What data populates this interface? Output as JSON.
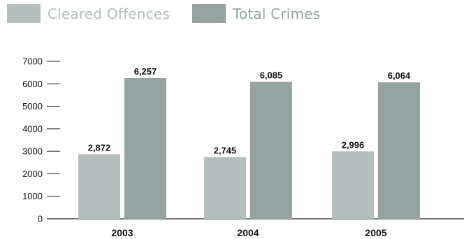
{
  "legend": [
    {
      "label": "Cleared Offences",
      "color": "#b3bfbd"
    },
    {
      "label": "Total Crimes",
      "color": "#95a3a1"
    }
  ],
  "chart_data": {
    "type": "bar",
    "categories": [
      "2003",
      "2004",
      "2005"
    ],
    "series": [
      {
        "name": "Cleared Offences",
        "values": [
          2872,
          2745,
          2996
        ],
        "labels": [
          "2,872",
          "2,745",
          "2,996"
        ],
        "color": "#b3bfbd"
      },
      {
        "name": "Total Crimes",
        "values": [
          6257,
          6085,
          6064
        ],
        "labels": [
          "6,257",
          "6,085",
          "6,064"
        ],
        "color": "#95a3a1"
      }
    ],
    "yticks": [
      0,
      1000,
      2000,
      3000,
      4000,
      5000,
      6000,
      7000
    ],
    "ylim": [
      0,
      7000
    ],
    "grid": false,
    "legend_position": "top-left"
  }
}
